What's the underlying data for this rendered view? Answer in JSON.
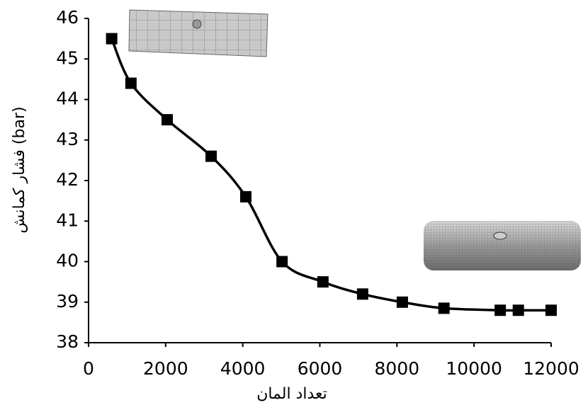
{
  "chart_data": {
    "type": "line",
    "x_label": "تعداد المان",
    "y_label": "فشار کمانش (bar)",
    "series": [
      {
        "color": "#000000",
        "x": [
          600,
          1100,
          2040,
          3180,
          4080,
          5020,
          6080,
          7110,
          8140,
          9220,
          10680,
          11150,
          12000
        ],
        "values": [
          45.5,
          44.4,
          43.5,
          42.6,
          41.6,
          40.0,
          39.5,
          39.2,
          39.0,
          38.85,
          38.8,
          38.8,
          38.8
        ]
      }
    ],
    "xlim": [
      0,
      12000
    ],
    "xticks": [
      0,
      2000,
      4000,
      6000,
      8000,
      10000,
      12000
    ],
    "ylim": [
      38,
      46
    ],
    "yticks": [
      38,
      39,
      40,
      41,
      42,
      43,
      44,
      45,
      46
    ],
    "grid": false
  }
}
